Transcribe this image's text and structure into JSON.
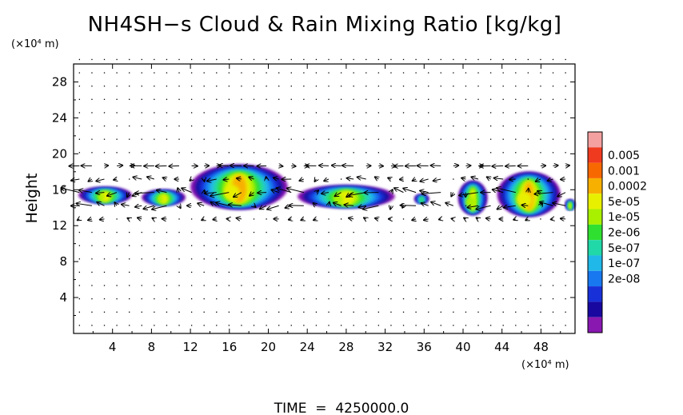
{
  "chart_data": {
    "type": "heatmap",
    "title": "NH4SH−s Cloud & Rain Mixing Ratio [kg/kg]",
    "ylabel": "Height",
    "y_unit_label": "(×10⁴ m)",
    "x_unit_label": "(×10⁴ m)",
    "xlim": [
      0,
      51.5
    ],
    "ylim": [
      0,
      30
    ],
    "x_ticks": [
      "4",
      "8",
      "12",
      "16",
      "20",
      "24",
      "28",
      "32",
      "36",
      "40",
      "44",
      "48"
    ],
    "y_ticks": [
      "4",
      "8",
      "12",
      "16",
      "20",
      "24",
      "28"
    ],
    "colorbar": {
      "labels": [
        "0.005",
        "0.001",
        "0.0002",
        "5e-05",
        "1e-05",
        "2e-06",
        "5e-07",
        "1e-07",
        "2e-08"
      ],
      "colors": [
        "#f4a0a0",
        "#f03a20",
        "#f86800",
        "#f8b000",
        "#e8f000",
        "#a8f000",
        "#30e030",
        "#20d8a8",
        "#20b8e8",
        "#1878f0",
        "#1830d8",
        "#1808a0",
        "#8818b0"
      ]
    },
    "cloud_cells": [
      {
        "x": [
          0.5,
          6.0
        ],
        "y": [
          14.5,
          16.3
        ],
        "peak": "5e-05"
      },
      {
        "x": [
          7.0,
          11.5
        ],
        "y": [
          14.3,
          16.0
        ],
        "peak": "5e-05"
      },
      {
        "x": [
          12.0,
          22.0
        ],
        "y": [
          13.8,
          18.8
        ],
        "peak": "0.0002"
      },
      {
        "x": [
          23.0,
          33.0
        ],
        "y": [
          14.0,
          16.5
        ],
        "peak": "5e-05"
      },
      {
        "x": [
          35.0,
          36.5
        ],
        "y": [
          14.5,
          15.5
        ],
        "peak": "2e-06"
      },
      {
        "x": [
          39.5,
          42.5
        ],
        "y": [
          13.2,
          17.0
        ],
        "peak": "5e-05"
      },
      {
        "x": [
          43.5,
          50.0
        ],
        "y": [
          13.0,
          18.0
        ],
        "peak": "0.0002"
      },
      {
        "x": [
          50.5,
          51.5
        ],
        "y": [
          13.8,
          14.9
        ],
        "peak": "5e-05"
      }
    ]
  },
  "footer": {
    "time_label": "TIME  =  4250000.0"
  }
}
